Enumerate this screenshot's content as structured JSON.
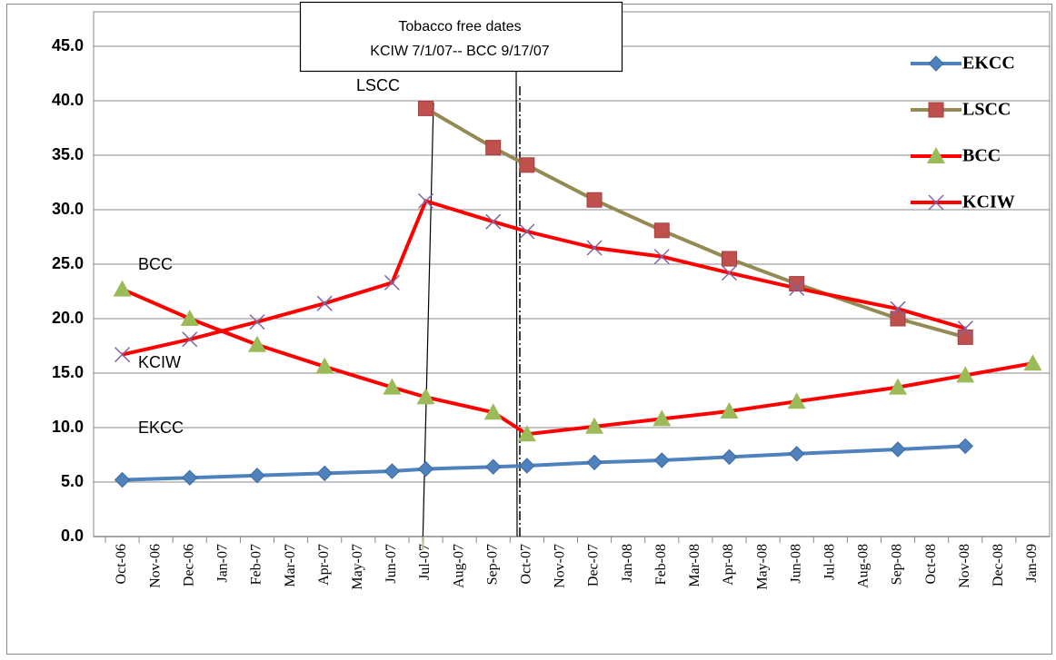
{
  "chart_data": {
    "type": "line",
    "categories": [
      "Oct-06",
      "Nov-06",
      "Dec-06",
      "Jan-07",
      "Feb-07",
      "Mar-07",
      "Apr-07",
      "May-07",
      "Jun-07",
      "Jul-07",
      "Aug-07",
      "Sep-07",
      "Oct-07",
      "Nov-07",
      "Dec-07",
      "Jan-08",
      "Feb-08",
      "Mar-08",
      "Apr-08",
      "May-08",
      "Jun-08",
      "Jul-08",
      "Aug-08",
      "Sep-08",
      "Oct-08",
      "Nov-08",
      "Dec-08",
      "Jan-09"
    ],
    "ylim": [
      0,
      45
    ],
    "yticks": [
      {
        "value": 0,
        "label": "0.0"
      },
      {
        "value": 5,
        "label": "5.0"
      },
      {
        "value": 10,
        "label": "10.0"
      },
      {
        "value": 15,
        "label": "15.0"
      },
      {
        "value": 20,
        "label": "20.0"
      },
      {
        "value": 25,
        "label": "25.0"
      },
      {
        "value": 30,
        "label": "30.0"
      },
      {
        "value": 35,
        "label": "35.0"
      },
      {
        "value": 40,
        "label": "40.0"
      },
      {
        "value": 45,
        "label": "45.0"
      }
    ],
    "grid": true,
    "legend": "top-right",
    "annotations": [
      "Tobacco free dates",
      "KCIW 7/1/07-- BCC 9/17/07",
      "LSCC",
      "BCC",
      "KCIW",
      "EKCC"
    ],
    "series": [
      {
        "name": "EKCC",
        "color": "#4f81bd",
        "marker_color": "#4f81bd",
        "marker": "diamond",
        "x": [
          "Oct-06",
          "Dec-06",
          "Feb-07",
          "Apr-07",
          "Jun-07",
          "Jul-07",
          "Sep-07",
          "Oct-07",
          "Dec-07",
          "Feb-08",
          "Apr-08",
          "Jun-08",
          "Sep-08",
          "Nov-08"
        ],
        "values": [
          5.2,
          5.4,
          5.6,
          5.8,
          6.0,
          6.2,
          6.4,
          6.5,
          6.8,
          7.0,
          7.3,
          7.6,
          8.0,
          8.3
        ]
      },
      {
        "name": "LSCC",
        "color": "#948a54",
        "marker_color": "#c0504d",
        "marker": "square",
        "x": [
          "Jul-07",
          "Sep-07",
          "Oct-07",
          "Dec-07",
          "Feb-08",
          "Apr-08",
          "Jun-08",
          "Sep-08",
          "Nov-08"
        ],
        "values": [
          39.3,
          35.7,
          34.1,
          30.9,
          28.1,
          25.5,
          23.2,
          20.0,
          18.3
        ]
      },
      {
        "name": "BCC",
        "color": "#ff0000",
        "marker_color": "#9bbb59",
        "marker": "triangle",
        "x": [
          "Oct-06",
          "Dec-06",
          "Feb-07",
          "Apr-07",
          "Jun-07",
          "Jul-07",
          "Sep-07",
          "Oct-07",
          "Dec-07",
          "Feb-08",
          "Apr-08",
          "Jun-08",
          "Sep-08",
          "Nov-08",
          "Jan-09"
        ],
        "values": [
          22.7,
          20.0,
          17.6,
          15.6,
          13.7,
          12.8,
          11.4,
          9.4,
          10.1,
          10.8,
          11.5,
          12.4,
          13.7,
          14.8,
          15.9
        ]
      },
      {
        "name": "KCIW",
        "color": "#ff0000",
        "marker_color": "#8064a2",
        "marker": "x",
        "x": [
          "Oct-06",
          "Dec-06",
          "Feb-07",
          "Apr-07",
          "Jun-07",
          "Jul-07",
          "Sep-07",
          "Oct-07",
          "Dec-07",
          "Feb-08",
          "Apr-08",
          "Jun-08",
          "Sep-08",
          "Nov-08"
        ],
        "values": [
          16.7,
          18.1,
          19.7,
          21.4,
          23.3,
          30.8,
          28.9,
          28.0,
          26.5,
          25.7,
          24.2,
          22.8,
          20.9,
          19.1
        ]
      }
    ]
  }
}
